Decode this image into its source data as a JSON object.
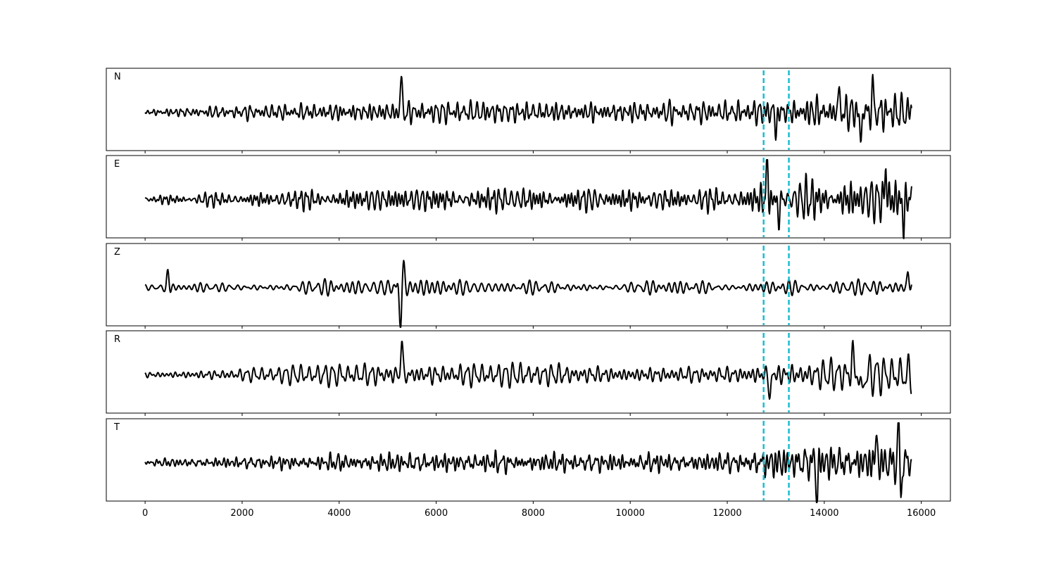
{
  "chart_data": {
    "type": "line",
    "subtype": "seismogram-multichannel",
    "title": "",
    "xlabel": "",
    "ylabel": "",
    "xlim": [
      -800,
      16600
    ],
    "x_ticks": [
      0,
      2000,
      4000,
      6000,
      8000,
      10000,
      12000,
      14000,
      16000
    ],
    "x_tick_labels": [
      "0",
      "2000",
      "4000",
      "6000",
      "8000",
      "10000",
      "12000",
      "14000",
      "16000"
    ],
    "samples": 15800,
    "y_ticks_visible": false,
    "grid": false,
    "trace_color": "#000000",
    "pick_color": "#17becf",
    "pick_style": "dashed",
    "picks": [
      12750,
      13270
    ],
    "channels": [
      {
        "name": "N",
        "events": [
          {
            "sample": 5280,
            "amplitude": 1.0,
            "polarity": 1
          },
          {
            "sample": 13010,
            "amplitude": 0.55,
            "polarity": -1
          },
          {
            "sample": 14300,
            "amplitude": 0.6,
            "polarity": 1
          },
          {
            "sample": 14750,
            "amplitude": 0.8,
            "polarity": -1
          },
          {
            "sample": 15000,
            "amplitude": 0.7,
            "polarity": 1
          }
        ],
        "noise_levels": [
          [
            0,
            0.1
          ],
          [
            5200,
            0.3
          ],
          [
            12000,
            0.28
          ],
          [
            12750,
            0.42
          ],
          [
            15800,
            0.5
          ]
        ]
      },
      {
        "name": "E",
        "events": [
          {
            "sample": 12820,
            "amplitude": 1.0,
            "polarity": 1
          },
          {
            "sample": 13060,
            "amplitude": 0.6,
            "polarity": -1
          },
          {
            "sample": 15270,
            "amplitude": 0.8,
            "polarity": 1
          },
          {
            "sample": 15630,
            "amplitude": 0.75,
            "polarity": -1
          }
        ],
        "noise_levels": [
          [
            0,
            0.1
          ],
          [
            5100,
            0.28
          ],
          [
            12000,
            0.24
          ],
          [
            12750,
            0.4
          ],
          [
            15800,
            0.55
          ]
        ]
      },
      {
        "name": "Z",
        "events": [
          {
            "sample": 470,
            "amplitude": 0.4,
            "polarity": 1
          },
          {
            "sample": 5260,
            "amplitude": 1.0,
            "polarity": -1
          },
          {
            "sample": 5330,
            "amplitude": 0.5,
            "polarity": 1
          },
          {
            "sample": 15730,
            "amplitude": 0.45,
            "polarity": 1
          }
        ],
        "noise_levels": [
          [
            0,
            0.08
          ],
          [
            5100,
            0.22
          ],
          [
            7500,
            0.16
          ],
          [
            12750,
            0.14
          ],
          [
            15800,
            0.22
          ]
        ]
      },
      {
        "name": "R",
        "events": [
          {
            "sample": 5290,
            "amplitude": 1.0,
            "polarity": 1
          },
          {
            "sample": 12880,
            "amplitude": 0.7,
            "polarity": -1
          },
          {
            "sample": 14580,
            "amplitude": 0.7,
            "polarity": 1
          },
          {
            "sample": 14780,
            "amplitude": 0.75,
            "polarity": -1
          }
        ],
        "noise_levels": [
          [
            0,
            0.1
          ],
          [
            5200,
            0.35
          ],
          [
            12000,
            0.26
          ],
          [
            12750,
            0.38
          ],
          [
            15800,
            0.5
          ]
        ]
      },
      {
        "name": "T",
        "events": [
          {
            "sample": 13850,
            "amplitude": 0.9,
            "polarity": -1
          },
          {
            "sample": 15070,
            "amplitude": 0.75,
            "polarity": 1
          },
          {
            "sample": 15530,
            "amplitude": 0.9,
            "polarity": 1
          },
          {
            "sample": 15580,
            "amplitude": 0.7,
            "polarity": -1
          }
        ],
        "noise_levels": [
          [
            0,
            0.1
          ],
          [
            5100,
            0.3
          ],
          [
            12000,
            0.28
          ],
          [
            12750,
            0.5
          ],
          [
            15800,
            0.6
          ]
        ]
      }
    ]
  }
}
